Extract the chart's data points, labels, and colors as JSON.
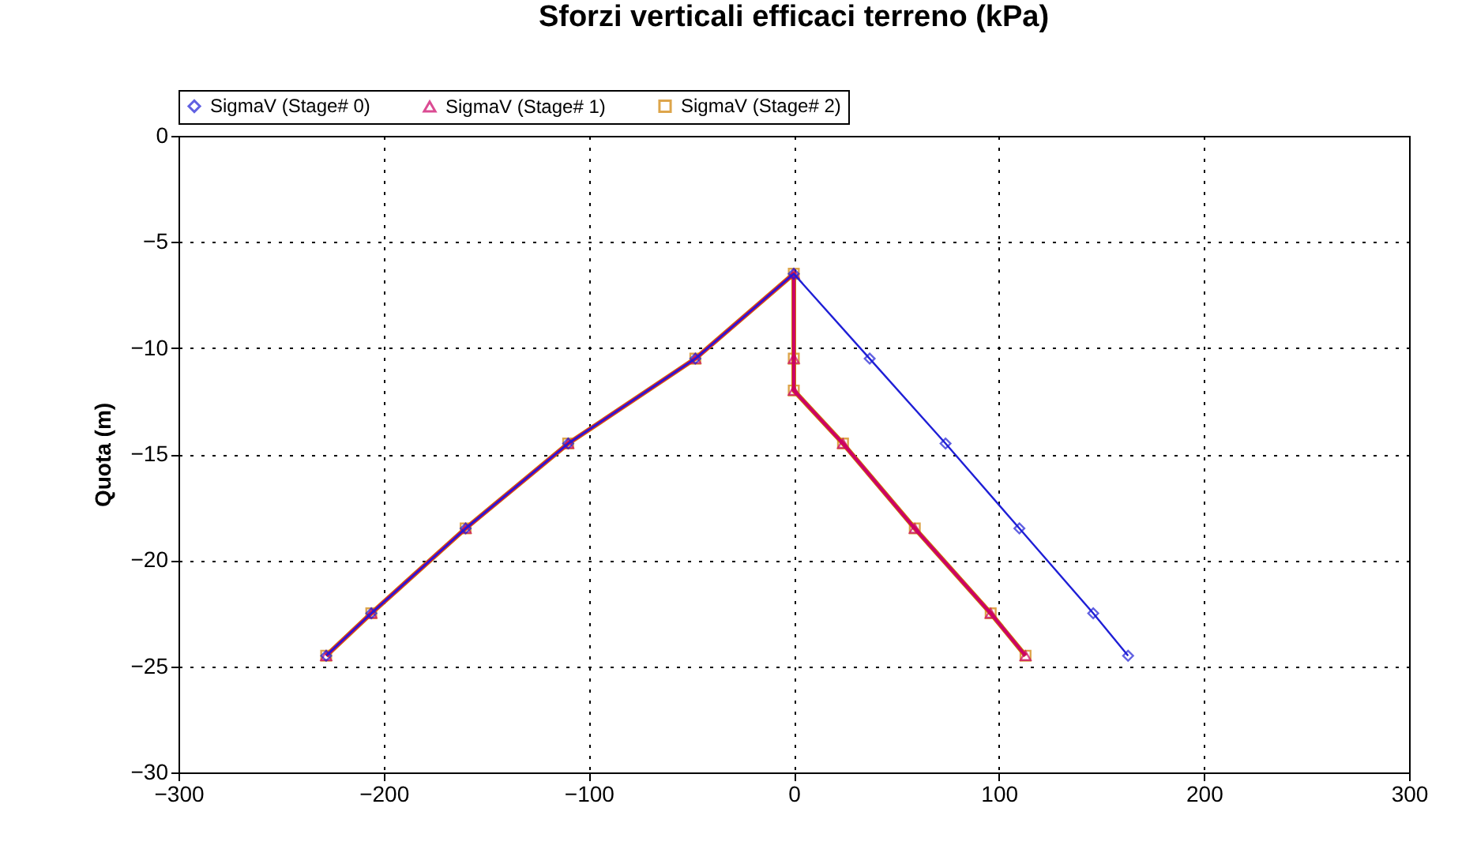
{
  "chart_data": {
    "type": "line",
    "title": "Sforzi verticali efficaci terreno (kPa)",
    "ylabel": "Quota (m)",
    "series": [
      {
        "name": "SigmaV (Stage# 0)",
        "color": "#1f1fd6",
        "marker": "diamond",
        "x": [
          -228,
          -206,
          -160,
          -110,
          -48,
          0,
          37,
          74,
          110,
          146,
          163
        ],
        "values": [
          -24.5,
          -22.5,
          -18.5,
          -14.5,
          -10.5,
          -6.5,
          -10.5,
          -14.5,
          -18.5,
          -22.5,
          -24.5
        ]
      },
      {
        "name": "SigmaV (Stage# 1)",
        "color": "#cc0066",
        "marker": "triangle",
        "x": [
          -228,
          -206,
          -160,
          -110,
          -48,
          0,
          0,
          0,
          24,
          59,
          96,
          113
        ],
        "values": [
          -24.5,
          -22.5,
          -18.5,
          -14.5,
          -10.5,
          -6.5,
          -10.5,
          -12,
          -14.5,
          -18.5,
          -22.5,
          -24.5
        ]
      },
      {
        "name": "SigmaV (Stage# 2)",
        "color": "#d08000",
        "marker": "square",
        "x": [
          -228,
          -206,
          -160,
          -110,
          -48,
          0,
          0,
          0,
          24,
          59,
          96,
          113
        ],
        "values": [
          -24.5,
          -22.5,
          -18.5,
          -14.5,
          -10.5,
          -6.5,
          -10.5,
          -12,
          -14.5,
          -18.5,
          -22.5,
          -24.5
        ]
      }
    ],
    "xlim": [
      -300,
      300
    ],
    "xticks": [
      -300,
      -200,
      -100,
      0,
      100,
      200,
      300
    ],
    "ylim": [
      -30,
      0
    ],
    "yticks": [
      -30,
      -25,
      -20,
      -15,
      -10,
      -5,
      0
    ],
    "grid": true,
    "legend": "top",
    "line_style": "solid"
  }
}
